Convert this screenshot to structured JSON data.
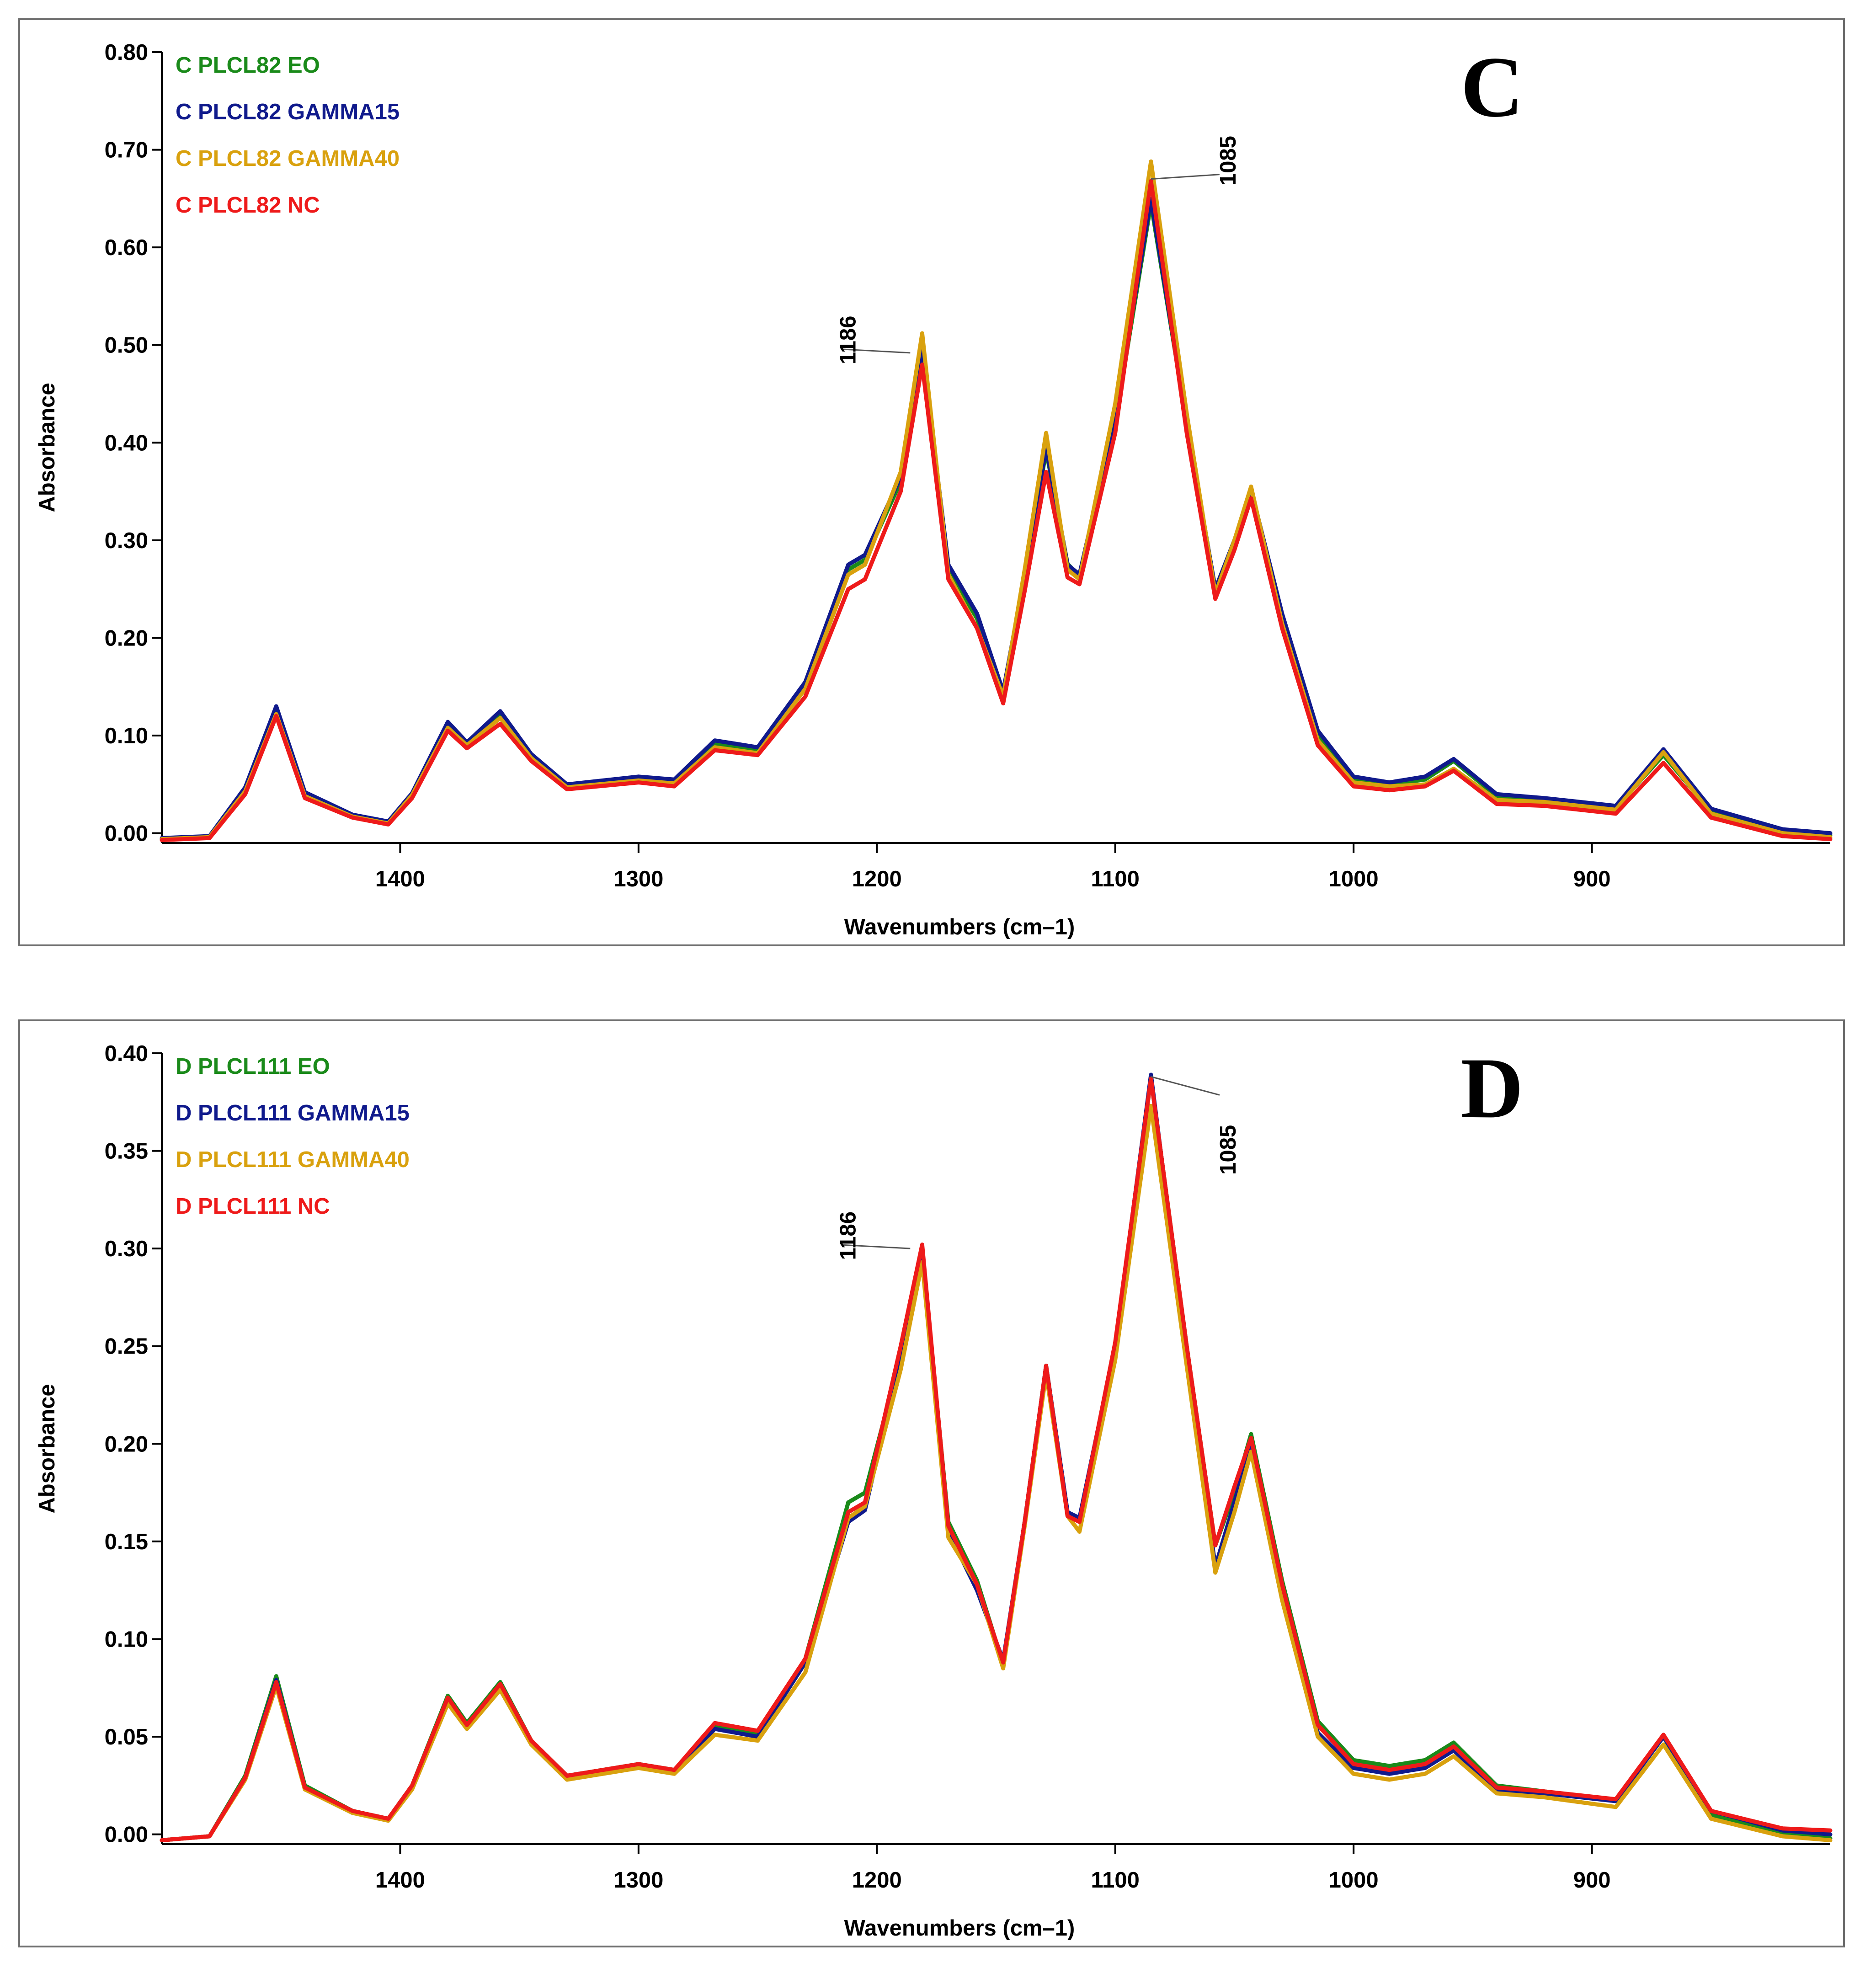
{
  "colors": {
    "EO": "#1a8a1a",
    "GAMMA15": "#101a8c",
    "GAMMA40": "#d9a10e",
    "NC": "#ee1a1a"
  },
  "chart_data": [
    {
      "type": "line",
      "panel_letter": "C",
      "xlabel": "Wavenumbers (cm–1)",
      "ylabel": "Absorbance",
      "xlim": [
        1500,
        800
      ],
      "ylim": [
        -0.01,
        0.8
      ],
      "x_ticks": [
        1400,
        1300,
        1200,
        1100,
        1000,
        900
      ],
      "x_tick_labels": [
        "1400",
        "1300",
        "1200",
        "1100",
        "1000",
        "900"
      ],
      "y_ticks": [
        0.0,
        0.1,
        0.2,
        0.3,
        0.4,
        0.5,
        0.6,
        0.7,
        0.8
      ],
      "y_tick_labels": [
        "0.00",
        "0.10",
        "0.20",
        "0.30",
        "0.40",
        "0.50",
        "0.60",
        "0.70",
        "0.80"
      ],
      "legend": "top-left",
      "grid": false,
      "annotations": [
        {
          "text": "1186",
          "x": 1186,
          "y": 0.492
        },
        {
          "text": "1085",
          "x": 1085,
          "y": 0.67
        }
      ],
      "x": [
        1500,
        1480,
        1465,
        1452,
        1440,
        1420,
        1405,
        1395,
        1380,
        1372,
        1358,
        1345,
        1330,
        1300,
        1285,
        1268,
        1250,
        1230,
        1212,
        1205,
        1190,
        1181,
        1170,
        1158,
        1147,
        1138,
        1129,
        1120,
        1115,
        1100,
        1085,
        1070,
        1058,
        1050,
        1043,
        1030,
        1015,
        1000,
        985,
        970,
        958,
        940,
        920,
        890,
        870,
        850,
        820,
        800
      ],
      "series": [
        {
          "name": "C PLCL82 EO",
          "color_key": "EO",
          "values": [
            -0.006,
            -0.004,
            0.045,
            0.125,
            0.04,
            0.018,
            0.011,
            0.04,
            0.111,
            0.091,
            0.122,
            0.079,
            0.049,
            0.056,
            0.053,
            0.092,
            0.085,
            0.15,
            0.27,
            0.28,
            0.36,
            0.49,
            0.27,
            0.22,
            0.142,
            0.26,
            0.392,
            0.276,
            0.263,
            0.42,
            0.645,
            0.42,
            0.25,
            0.3,
            0.35,
            0.22,
            0.1,
            0.055,
            0.05,
            0.055,
            0.074,
            0.038,
            0.034,
            0.026,
            0.08,
            0.022,
            0.002,
            -0.002
          ]
        },
        {
          "name": "C PLCL82 GAMMA15",
          "color_key": "GAMMA15",
          "values": [
            -0.005,
            -0.003,
            0.047,
            0.13,
            0.042,
            0.019,
            0.012,
            0.041,
            0.114,
            0.093,
            0.125,
            0.081,
            0.05,
            0.058,
            0.055,
            0.095,
            0.088,
            0.155,
            0.275,
            0.285,
            0.365,
            0.495,
            0.275,
            0.225,
            0.145,
            0.264,
            0.395,
            0.275,
            0.265,
            0.425,
            0.65,
            0.42,
            0.25,
            0.3,
            0.352,
            0.225,
            0.105,
            0.058,
            0.052,
            0.058,
            0.076,
            0.04,
            0.036,
            0.028,
            0.086,
            0.025,
            0.004,
            0.0
          ]
        },
        {
          "name": "C PLCL82 GAMMA40",
          "color_key": "GAMMA40",
          "values": [
            -0.006,
            -0.004,
            0.043,
            0.122,
            0.038,
            0.017,
            0.01,
            0.039,
            0.108,
            0.09,
            0.118,
            0.077,
            0.047,
            0.054,
            0.051,
            0.088,
            0.082,
            0.148,
            0.265,
            0.275,
            0.37,
            0.512,
            0.265,
            0.21,
            0.14,
            0.27,
            0.41,
            0.27,
            0.26,
            0.44,
            0.688,
            0.43,
            0.245,
            0.3,
            0.355,
            0.215,
            0.095,
            0.052,
            0.048,
            0.05,
            0.066,
            0.034,
            0.032,
            0.024,
            0.083,
            0.02,
            0.0,
            -0.004
          ]
        },
        {
          "name": "C PLCL82 NC",
          "color_key": "NC",
          "values": [
            -0.007,
            -0.005,
            0.04,
            0.12,
            0.036,
            0.016,
            0.009,
            0.036,
            0.105,
            0.087,
            0.112,
            0.074,
            0.045,
            0.052,
            0.048,
            0.085,
            0.08,
            0.14,
            0.25,
            0.26,
            0.35,
            0.48,
            0.26,
            0.21,
            0.133,
            0.248,
            0.37,
            0.262,
            0.255,
            0.41,
            0.668,
            0.41,
            0.24,
            0.29,
            0.343,
            0.21,
            0.09,
            0.048,
            0.044,
            0.048,
            0.064,
            0.03,
            0.028,
            0.02,
            0.072,
            0.016,
            -0.003,
            -0.006
          ]
        }
      ]
    },
    {
      "type": "line",
      "panel_letter": "D",
      "xlabel": "Wavenumbers (cm–1)",
      "ylabel": "Absorbance",
      "xlim": [
        1500,
        800
      ],
      "ylim": [
        -0.005,
        0.4
      ],
      "x_ticks": [
        1400,
        1300,
        1200,
        1100,
        1000,
        900
      ],
      "x_tick_labels": [
        "1400",
        "1300",
        "1200",
        "1100",
        "1000",
        "900"
      ],
      "y_ticks": [
        0.0,
        0.05,
        0.1,
        0.15,
        0.2,
        0.25,
        0.3,
        0.35,
        0.4
      ],
      "y_tick_labels": [
        "0.00",
        "0.05",
        "0.10",
        "0.15",
        "0.20",
        "0.25",
        "0.30",
        "0.35",
        "0.40"
      ],
      "legend": "top-left",
      "grid": false,
      "annotations": [
        {
          "text": "1186",
          "x": 1186,
          "y": 0.3
        },
        {
          "text": "1085",
          "x": 1085,
          "y": 0.388
        }
      ],
      "x": [
        1500,
        1480,
        1465,
        1452,
        1440,
        1420,
        1405,
        1395,
        1380,
        1372,
        1358,
        1345,
        1330,
        1300,
        1285,
        1268,
        1250,
        1230,
        1212,
        1205,
        1190,
        1181,
        1170,
        1158,
        1147,
        1138,
        1129,
        1120,
        1115,
        1100,
        1085,
        1070,
        1058,
        1050,
        1043,
        1030,
        1015,
        1000,
        985,
        970,
        958,
        940,
        920,
        890,
        870,
        850,
        820,
        800
      ],
      "series": [
        {
          "name": "D PLCL111 EO",
          "color_key": "EO",
          "values": [
            -0.003,
            -0.001,
            0.03,
            0.081,
            0.025,
            0.012,
            0.008,
            0.025,
            0.071,
            0.057,
            0.078,
            0.048,
            0.03,
            0.036,
            0.033,
            0.055,
            0.051,
            0.09,
            0.17,
            0.175,
            0.245,
            0.298,
            0.16,
            0.13,
            0.087,
            0.16,
            0.24,
            0.165,
            0.16,
            0.25,
            0.387,
            0.25,
            0.148,
            0.175,
            0.205,
            0.13,
            0.058,
            0.038,
            0.035,
            0.038,
            0.047,
            0.025,
            0.022,
            0.017,
            0.05,
            0.01,
            0.0,
            -0.002
          ]
        },
        {
          "name": "D PLCL111 GAMMA15",
          "color_key": "GAMMA15",
          "values": [
            -0.003,
            -0.001,
            0.029,
            0.079,
            0.024,
            0.011,
            0.008,
            0.024,
            0.069,
            0.056,
            0.076,
            0.047,
            0.029,
            0.035,
            0.032,
            0.054,
            0.05,
            0.088,
            0.16,
            0.166,
            0.245,
            0.298,
            0.155,
            0.125,
            0.089,
            0.16,
            0.24,
            0.165,
            0.162,
            0.25,
            0.389,
            0.245,
            0.137,
            0.17,
            0.2,
            0.125,
            0.052,
            0.034,
            0.031,
            0.034,
            0.043,
            0.023,
            0.021,
            0.017,
            0.05,
            0.012,
            0.002,
            0.0
          ]
        },
        {
          "name": "D PLCL111 GAMMA40",
          "color_key": "GAMMA40",
          "values": [
            -0.003,
            -0.001,
            0.028,
            0.076,
            0.023,
            0.011,
            0.007,
            0.023,
            0.067,
            0.054,
            0.074,
            0.046,
            0.028,
            0.034,
            0.031,
            0.051,
            0.048,
            0.083,
            0.162,
            0.168,
            0.238,
            0.293,
            0.152,
            0.128,
            0.085,
            0.158,
            0.236,
            0.163,
            0.155,
            0.243,
            0.373,
            0.24,
            0.134,
            0.165,
            0.196,
            0.12,
            0.05,
            0.031,
            0.028,
            0.031,
            0.04,
            0.021,
            0.019,
            0.014,
            0.046,
            0.008,
            -0.001,
            -0.003
          ]
        },
        {
          "name": "D PLCL111 NC",
          "color_key": "NC",
          "values": [
            -0.003,
            -0.001,
            0.029,
            0.078,
            0.024,
            0.012,
            0.008,
            0.025,
            0.07,
            0.056,
            0.077,
            0.048,
            0.03,
            0.036,
            0.033,
            0.057,
            0.053,
            0.09,
            0.165,
            0.17,
            0.25,
            0.302,
            0.158,
            0.128,
            0.088,
            0.16,
            0.24,
            0.163,
            0.16,
            0.252,
            0.387,
            0.25,
            0.148,
            0.178,
            0.203,
            0.128,
            0.056,
            0.036,
            0.033,
            0.036,
            0.045,
            0.024,
            0.022,
            0.018,
            0.051,
            0.012,
            0.003,
            0.002
          ]
        }
      ]
    }
  ]
}
